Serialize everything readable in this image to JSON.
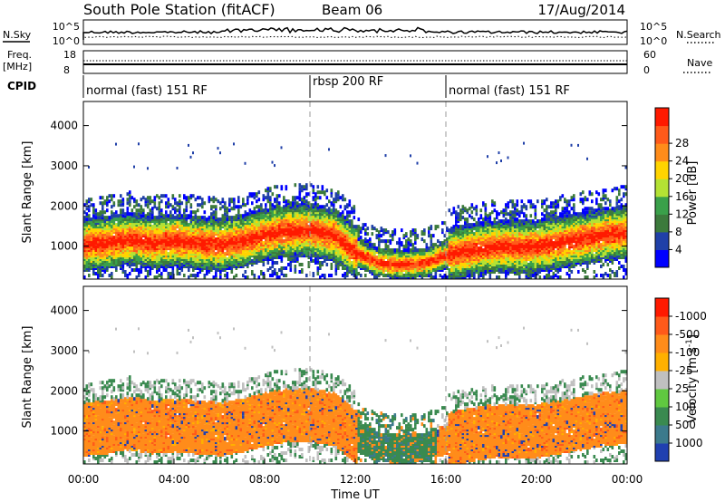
{
  "header": {
    "title": "South Pole Station (fitACF)",
    "beam": "Beam 06",
    "date": "17/Aug/2014"
  },
  "top_panels": {
    "nsky_label": "N.Sky",
    "nsearch_label": "N.Search",
    "noise_ticks_left": [
      "10^5",
      "10^0"
    ],
    "noise_ticks_right": [
      "10^5",
      "10^0"
    ],
    "freq_label_1": "Freq.",
    "freq_label_2": "[MHz]",
    "freq_ticks": [
      "18",
      "8"
    ],
    "nave_ticks": [
      "60",
      "0"
    ],
    "nave_label": "Nave",
    "cpid_label": "CPID",
    "cpid_segments": [
      {
        "label": "normal (fast) 151 RF",
        "start_h": 0,
        "end_h": 10
      },
      {
        "label": "rbsp 200 RF",
        "start_h": 10,
        "end_h": 16
      },
      {
        "label": "normal (fast) 151 RF",
        "start_h": 16,
        "end_h": 24
      }
    ]
  },
  "axes": {
    "ylabel": "Slant Range [km]",
    "xlabel": "Time UT",
    "x_ticks": [
      "00:00",
      "04:00",
      "08:00",
      "12:00",
      "16:00",
      "20:00",
      "00:00"
    ],
    "y_ticks": [
      "1000",
      "2000",
      "3000",
      "4000"
    ]
  },
  "chart_data": [
    {
      "type": "heatmap",
      "name": "power",
      "x_range_hours": [
        0,
        24
      ],
      "y_range_km": [
        180,
        4600
      ],
      "colorbar": {
        "label": "Power [dB]",
        "ticks": [
          "4",
          "8",
          "12",
          "16",
          "20",
          "24",
          "28"
        ],
        "colors": [
          "#0000ff",
          "#2040a8",
          "#3c7a3c",
          "#3aa04a",
          "#b4e234",
          "#ffd400",
          "#ff8c1a",
          "#ff5a1a",
          "#ff1a00"
        ]
      },
      "band_center_km": [
        [
          0,
          1000
        ],
        [
          1,
          1050
        ],
        [
          2,
          1150
        ],
        [
          3,
          1050
        ],
        [
          4,
          1100
        ],
        [
          5,
          1050
        ],
        [
          6,
          1000
        ],
        [
          7,
          1100
        ],
        [
          8,
          1250
        ],
        [
          9,
          1350
        ],
        [
          10,
          1350
        ],
        [
          11,
          1250
        ],
        [
          12,
          800
        ],
        [
          13,
          550
        ],
        [
          14,
          500
        ],
        [
          15,
          550
        ],
        [
          16,
          750
        ],
        [
          17,
          850
        ],
        [
          18,
          950
        ],
        [
          19,
          950
        ],
        [
          20,
          950
        ],
        [
          21,
          1050
        ],
        [
          22,
          1150
        ],
        [
          23,
          1250
        ],
        [
          24,
          1300
        ]
      ]
    },
    {
      "type": "heatmap",
      "name": "velocity",
      "x_range_hours": [
        0,
        24
      ],
      "y_range_km": [
        180,
        4600
      ],
      "colorbar": {
        "label": "Velocity [m s^-1]",
        "ticks": [
          "1000",
          "500",
          "100",
          "25",
          "-25",
          "-100",
          "-500",
          "-1000"
        ],
        "colors": [
          "#2040b0",
          "#3c7a8c",
          "#3a8a50",
          "#60c840",
          "#c0c0c0",
          "#ffb000",
          "#ff8c1a",
          "#ff5a1a",
          "#ff1a00"
        ]
      }
    }
  ]
}
